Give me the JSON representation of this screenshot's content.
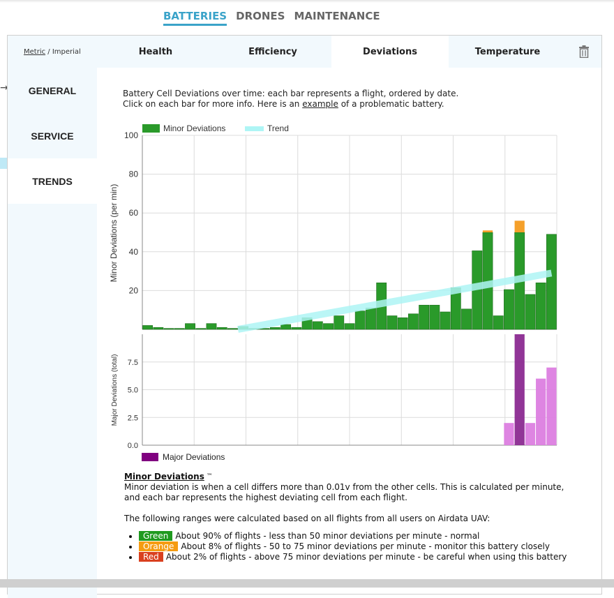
{
  "top_nav": [
    "BATTERIES",
    "DRONES",
    "MAINTENANCE"
  ],
  "units": {
    "metric": "Metric",
    "sep": " / ",
    "imperial": "Imperial"
  },
  "tabs": [
    "Health",
    "Efficiency",
    "Deviations",
    "Temperature"
  ],
  "sidebar": [
    "GENERAL",
    "SERVICE",
    "TRENDS"
  ],
  "description": {
    "line1": "Battery Cell Deviations over time: each bar represents a flight, ordered by date.",
    "line2_pre": "Click on each bar for more info. Here is an ",
    "line2_link": "example",
    "line2_post": " of a problematic battery."
  },
  "chart_data": [
    {
      "type": "bar",
      "ylabel": "Minor Deviations (per min)",
      "ylim": [
        0,
        100
      ],
      "yticks": [
        20,
        40,
        60,
        80,
        100
      ],
      "legend": [
        "Minor Deviations",
        "Trend"
      ],
      "series": [
        {
          "name": "Minor Deviations",
          "color": "#2a9a2a",
          "values": [
            2,
            1,
            0.5,
            0.5,
            3,
            0.5,
            3,
            1,
            0.5,
            1.5,
            0.5,
            0.5,
            1,
            2.5,
            1,
            6,
            4,
            3,
            7,
            3,
            9.5,
            11,
            24,
            7,
            6,
            8,
            12.5,
            12.5,
            9,
            21.5,
            10.5,
            40.5,
            50,
            7,
            20.5,
            50,
            18,
            24,
            49
          ]
        },
        {
          "name": "Orange",
          "color": "#f5a02a",
          "values": [
            0,
            0,
            0,
            0,
            0,
            0,
            0,
            0,
            0,
            0,
            0,
            0,
            0,
            0,
            0,
            0,
            0,
            0,
            0,
            0,
            0,
            0,
            0,
            0,
            0,
            0,
            0,
            0,
            0,
            0,
            0,
            0,
            1,
            0,
            0,
            6,
            0,
            0,
            0
          ]
        }
      ],
      "trend": {
        "color": "#aef5f5",
        "from": [
          9,
          0
        ],
        "to": [
          38.5,
          29
        ]
      }
    },
    {
      "type": "bar",
      "ylabel": "Major Deviations (total)",
      "ylim": [
        0,
        10
      ],
      "yticks": [
        "0.0",
        "2.5",
        "5.0",
        "7.5"
      ],
      "legend": [
        "Major Deviations"
      ],
      "series": [
        {
          "name": "Major Deviations",
          "colors": [
            "#dc7ee0",
            "#8b2a91"
          ],
          "values": [
            0,
            0,
            0,
            0,
            0,
            0,
            0,
            0,
            0,
            0,
            0,
            0,
            0,
            0,
            0,
            0,
            0,
            0,
            0,
            0,
            0,
            0,
            0,
            0,
            0,
            0,
            0,
            0,
            0,
            0,
            0,
            0,
            0,
            0,
            2,
            10,
            2,
            6,
            7
          ],
          "highlight": 35
        }
      ]
    }
  ],
  "info": {
    "title": "Minor Deviations",
    "tm": " ™",
    "body1": "Minor deviation is when a cell differs more than 0.01v from the other cells. This is calculated per minute,",
    "body2": "and each bar represents the highest deviating cell from each flight.",
    "ranges_intro": "The following ranges were calculated based on all flights from all users on Airdata UAV:",
    "ranges": [
      {
        "label": "Green",
        "color": "#1f9a1f",
        "text": "About 90% of flights - less than 50 minor deviations per minute - normal"
      },
      {
        "label": "Orange",
        "color": "#f59c12",
        "text": "About 8% of flights - 50 to 75 minor deviations per minute - monitor this battery closely"
      },
      {
        "label": "Red",
        "color": "#d9401f",
        "text": "About 2% of flights - above 75 minor deviations per minute - be careful when using this battery"
      }
    ]
  }
}
